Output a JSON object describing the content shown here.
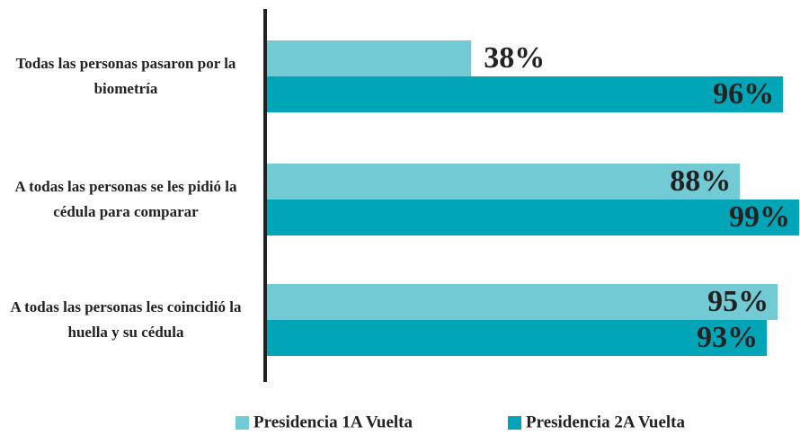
{
  "chart_data": {
    "type": "hbar",
    "categories": [
      "Todas las personas pasaron por la biometría",
      "A todas las personas se les pidió la cédula para comparar",
      "A todas las personas les coincidió la huella y su cédula"
    ],
    "series": [
      {
        "name": "Presidencia 1A Vuelta",
        "color": "#72cbd4",
        "values": [
          38,
          88,
          95
        ],
        "value_labels": [
          "38%",
          "88%",
          "95%"
        ]
      },
      {
        "name": "Presidencia 2A Vuelta",
        "color": "#00a5b8",
        "values": [
          96,
          99,
          93
        ],
        "value_labels": [
          "96%",
          "99%",
          "93%"
        ]
      }
    ],
    "xlim": [
      0,
      100
    ],
    "legend": "bottom"
  }
}
